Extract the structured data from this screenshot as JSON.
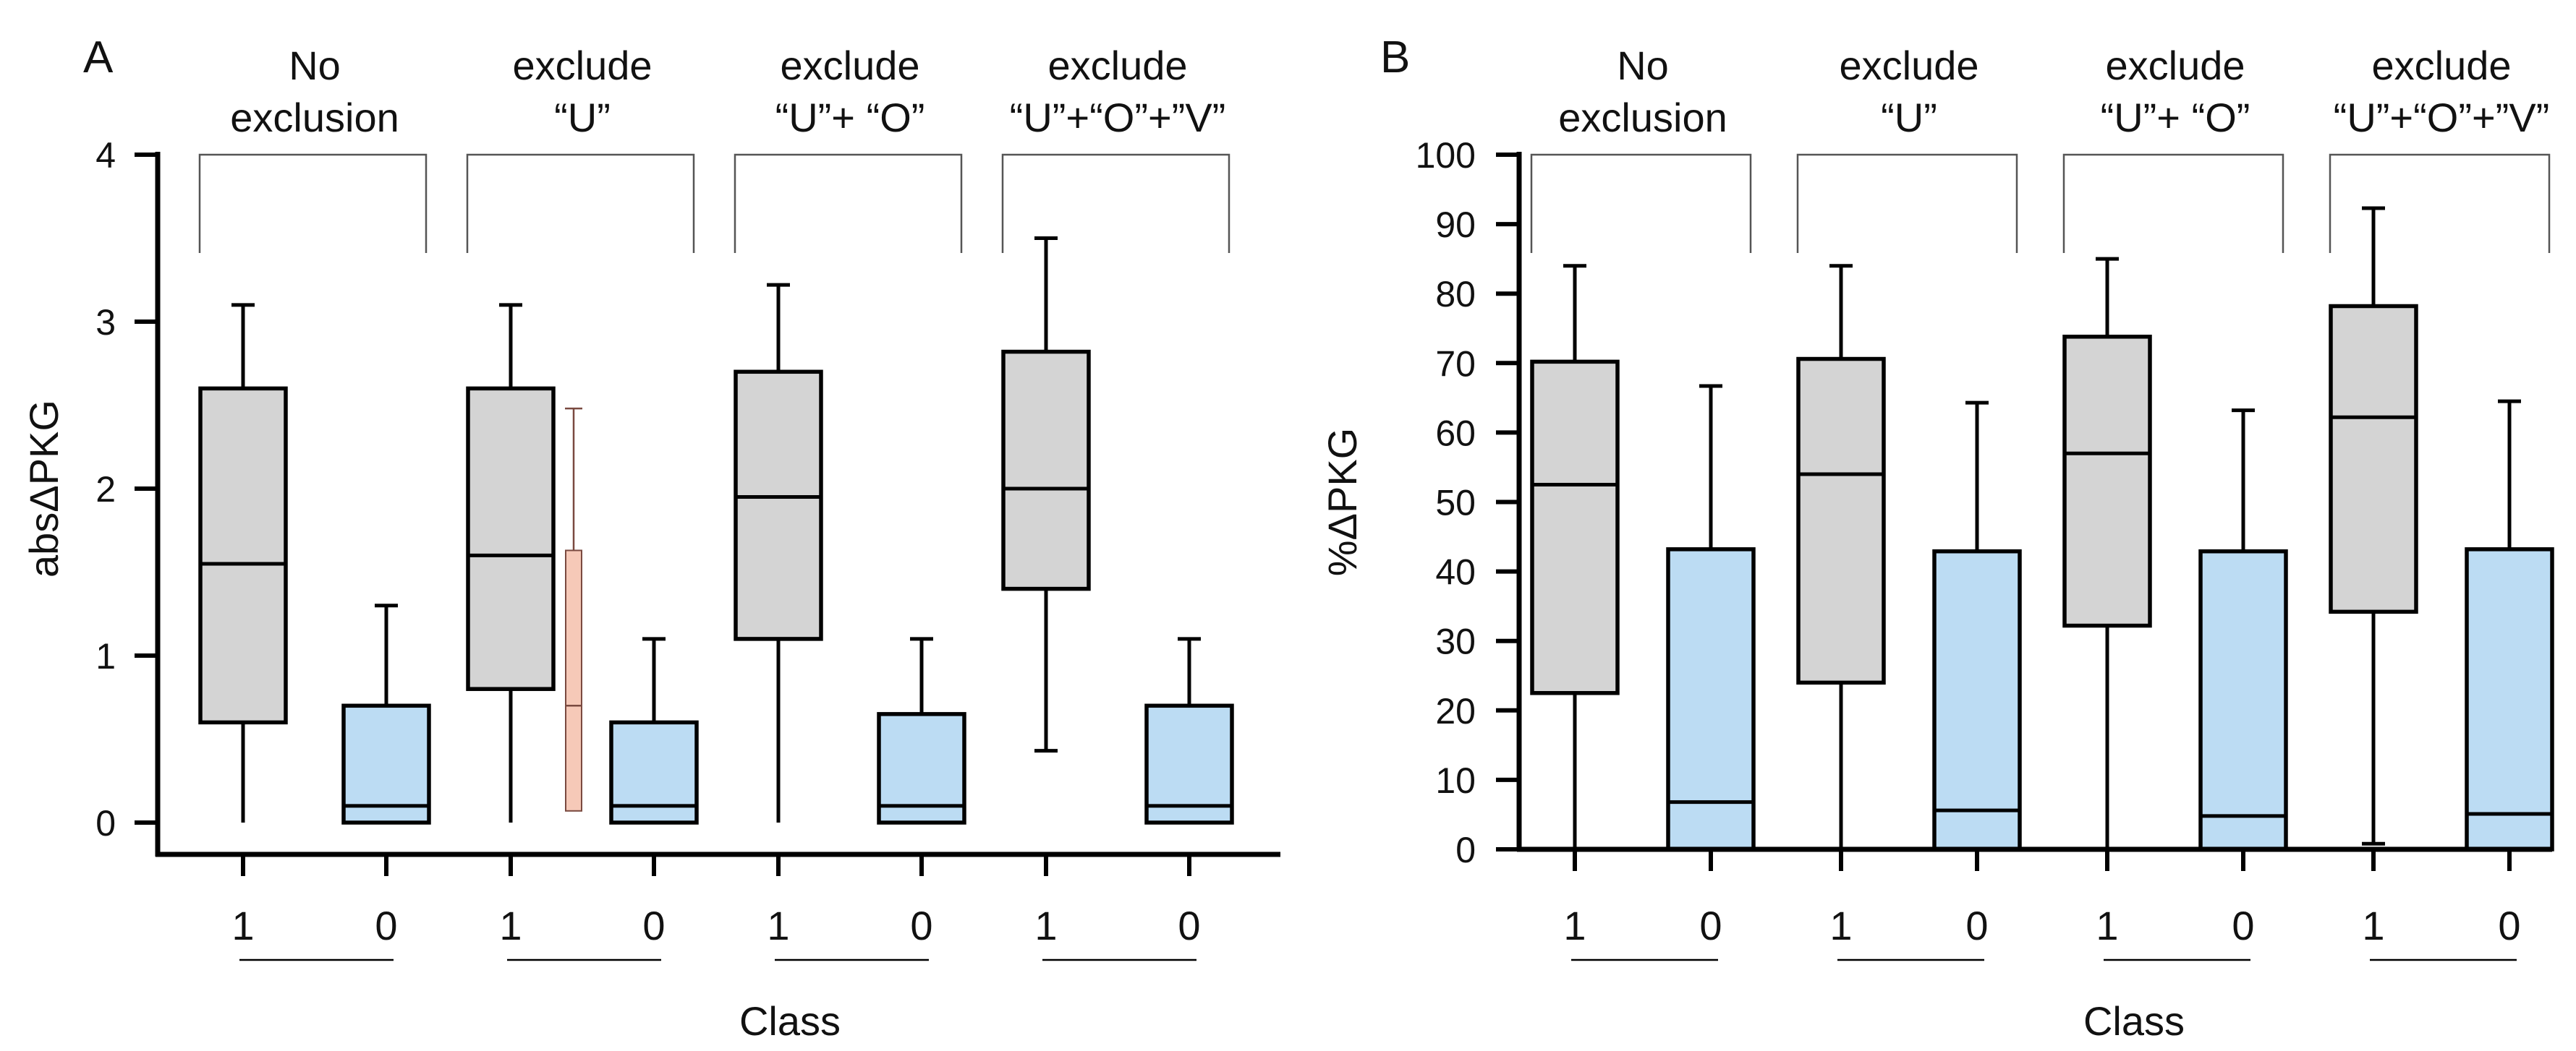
{
  "chart_data": [
    {
      "type": "box",
      "panel": "A",
      "ylabel": "absΔPKG",
      "xlabel": "Class",
      "ylim": [
        0,
        4
      ],
      "yticks": [
        "0",
        "1",
        "2",
        "3",
        "4"
      ],
      "groups": [
        {
          "label_lines": [
            "No",
            "exclusion"
          ],
          "boxes": [
            {
              "class": "1",
              "color": "#d4d4d4",
              "min": 0,
              "q1": 0.6,
              "median": 1.55,
              "q3": 2.6,
              "max": 3.1
            },
            {
              "class": "0",
              "color": "#bcdcf3",
              "min": 0,
              "q1": 0,
              "median": 0.1,
              "q3": 0.7,
              "max": 1.3
            }
          ]
        },
        {
          "label_lines": [
            "exclude",
            "“U”"
          ],
          "boxes": [
            {
              "class": "1",
              "color": "#d4d4d4",
              "min": 0,
              "q1": 0.8,
              "median": 1.6,
              "q3": 2.6,
              "max": 3.1
            },
            {
              "class": "0",
              "color": "#bcdcf3",
              "min": 0,
              "q1": 0,
              "median": 0.1,
              "q3": 0.6,
              "max": 1.1
            }
          ]
        },
        {
          "label_lines": [
            "exclude",
            "“U”+ “O”"
          ],
          "boxes": [
            {
              "class": "1",
              "color": "#d4d4d4",
              "min": 0,
              "q1": 1.1,
              "median": 1.95,
              "q3": 2.7,
              "max": 3.22
            },
            {
              "class": "0",
              "color": "#bcdcf3",
              "min": 0,
              "q1": 0,
              "median": 0.1,
              "q3": 0.65,
              "max": 1.1
            }
          ]
        },
        {
          "label_lines": [
            "exclude",
            "“U”+“O”+”V”"
          ],
          "boxes": [
            {
              "class": "1",
              "color": "#d4d4d4",
              "min": 0.43,
              "q1": 1.4,
              "median": 2.0,
              "q3": 2.82,
              "max": 3.5
            },
            {
              "class": "0",
              "color": "#bcdcf3",
              "min": 0,
              "q1": 0,
              "median": 0.1,
              "q3": 0.7,
              "max": 1.1
            }
          ]
        }
      ],
      "extra_box": {
        "after_group": 1,
        "color": "#f6c9b8",
        "min": 0.07,
        "q1": 0.07,
        "median": 0.7,
        "q3": 1.63,
        "max": 2.48
      }
    },
    {
      "type": "box",
      "panel": "B",
      "ylabel": "%ΔPKG",
      "xlabel": "Class",
      "ylim": [
        0,
        100
      ],
      "yticks": [
        "0",
        "10",
        "20",
        "30",
        "40",
        "50",
        "60",
        "70",
        "80",
        "90",
        "100"
      ],
      "groups": [
        {
          "label_lines": [
            "No",
            "exclusion"
          ],
          "boxes": [
            {
              "class": "1",
              "color": "#d4d4d4",
              "min": 0,
              "q1": 22.5,
              "median": 52.5,
              "q3": 70.2,
              "max": 84
            },
            {
              "class": "0",
              "color": "#bcdcf3",
              "min": 0,
              "q1": 0,
              "median": 6.8,
              "q3": 43.2,
              "max": 66.7
            }
          ]
        },
        {
          "label_lines": [
            "exclude",
            "“U”"
          ],
          "boxes": [
            {
              "class": "1",
              "color": "#d4d4d4",
              "min": 0,
              "q1": 24,
              "median": 54,
              "q3": 70.6,
              "max": 84
            },
            {
              "class": "0",
              "color": "#bcdcf3",
              "min": 0,
              "q1": 0,
              "median": 5.6,
              "q3": 42.9,
              "max": 64.3
            }
          ]
        },
        {
          "label_lines": [
            "exclude",
            "“U”+ “O”"
          ],
          "boxes": [
            {
              "class": "1",
              "color": "#d4d4d4",
              "min": 0,
              "q1": 32.2,
              "median": 57,
              "q3": 73.8,
              "max": 85
            },
            {
              "class": "0",
              "color": "#bcdcf3",
              "min": 0,
              "q1": 0,
              "median": 4.8,
              "q3": 42.9,
              "max": 63.2
            }
          ]
        },
        {
          "label_lines": [
            "exclude",
            "“U”+“O”+”V”"
          ],
          "boxes": [
            {
              "class": "1",
              "color": "#d4d4d4",
              "min": 0.8,
              "q1": 34.2,
              "median": 62.2,
              "q3": 78.2,
              "max": 92.3
            },
            {
              "class": "0",
              "color": "#bcdcf3",
              "min": 0,
              "q1": 0,
              "median": 5.1,
              "q3": 43.2,
              "max": 64.5
            }
          ]
        }
      ]
    }
  ]
}
